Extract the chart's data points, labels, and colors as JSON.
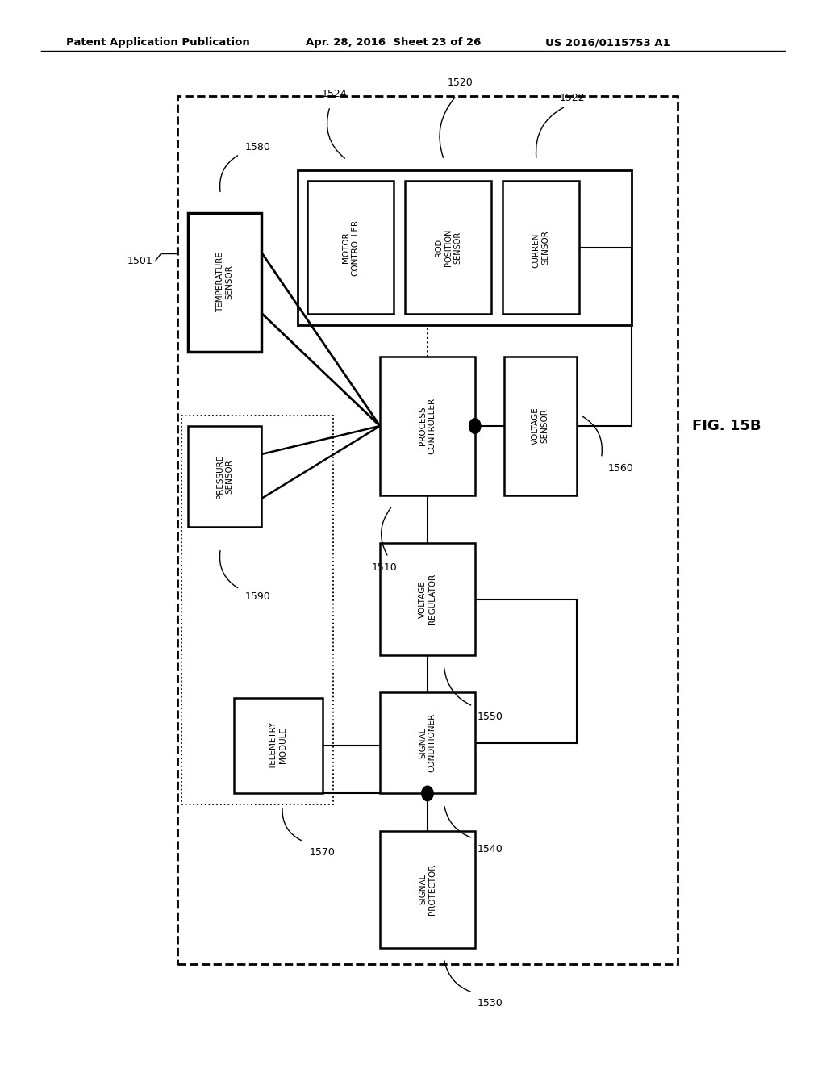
{
  "title_left": "Patent Application Publication",
  "title_mid": "Apr. 28, 2016  Sheet 23 of 26",
  "title_right": "US 2016/0115753 A1",
  "fig_label": "FIG. 15B",
  "bg_color": "#ffffff"
}
